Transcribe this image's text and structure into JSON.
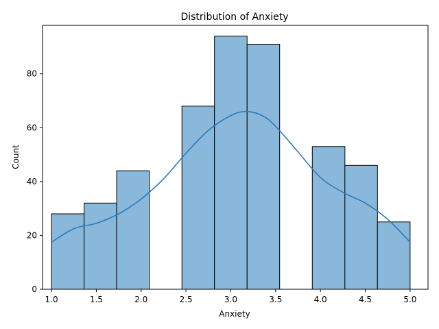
{
  "chart_data": {
    "type": "bar",
    "subtype": "histogram",
    "title": "Distribution of Anxiety",
    "xlabel": "Anxiety",
    "ylabel": "Count",
    "xlim": [
      0.9,
      5.2
    ],
    "ylim": [
      0,
      98
    ],
    "x_ticks": [
      "1.0",
      "1.5",
      "2.0",
      "2.5",
      "3.0",
      "3.5",
      "4.0",
      "4.5",
      "5.0"
    ],
    "x_tick_values": [
      1.0,
      1.5,
      2.0,
      2.5,
      3.0,
      3.5,
      4.0,
      4.5,
      5.0
    ],
    "y_ticks": [
      "0",
      "20",
      "40",
      "60",
      "80"
    ],
    "y_tick_values": [
      0,
      20,
      40,
      60,
      80
    ],
    "bins": [
      {
        "start": 1.0,
        "end": 1.364,
        "count": 28
      },
      {
        "start": 1.364,
        "end": 1.727,
        "count": 32
      },
      {
        "start": 1.727,
        "end": 2.091,
        "count": 44
      },
      {
        "start": 2.091,
        "end": 2.455,
        "count": 0
      },
      {
        "start": 2.455,
        "end": 2.818,
        "count": 68
      },
      {
        "start": 2.818,
        "end": 3.182,
        "count": 94
      },
      {
        "start": 3.182,
        "end": 3.545,
        "count": 91
      },
      {
        "start": 3.545,
        "end": 3.909,
        "count": 0
      },
      {
        "start": 3.909,
        "end": 4.273,
        "count": 53
      },
      {
        "start": 4.273,
        "end": 4.636,
        "count": 46
      },
      {
        "start": 4.636,
        "end": 5.0,
        "count": 25
      }
    ],
    "kde": {
      "x": [
        1.0,
        1.25,
        1.5,
        1.75,
        2.0,
        2.25,
        2.5,
        2.75,
        3.0,
        3.17,
        3.35,
        3.5,
        3.75,
        4.0,
        4.25,
        4.5,
        4.75,
        5.0
      ],
      "y": [
        17.5,
        22.5,
        24.5,
        28.0,
        33.5,
        41.0,
        50.5,
        59.0,
        64.5,
        66.0,
        64.5,
        60.5,
        51.0,
        41.5,
        36.0,
        32.0,
        26.0,
        17.5
      ]
    },
    "colors": {
      "bar_fill": "#8ab8da",
      "bar_edge": "#000000",
      "kde_line": "#2a7ab8"
    },
    "grid": false,
    "legend": "none"
  }
}
